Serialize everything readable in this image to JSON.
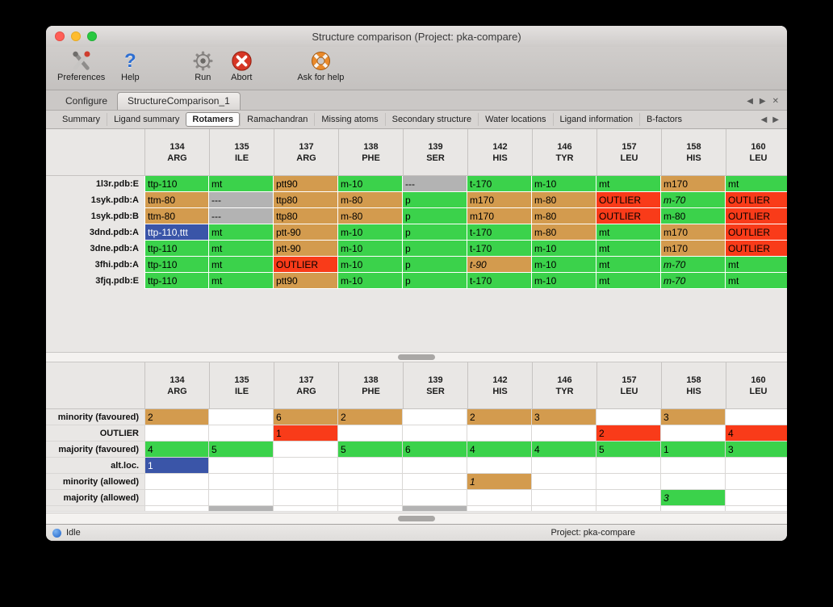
{
  "window": {
    "title": "Structure comparison (Project: pka-compare)"
  },
  "toolbar": {
    "items": [
      {
        "label": "Preferences",
        "icon": "preferences-icon"
      },
      {
        "label": "Help",
        "icon": "help-icon"
      },
      {
        "label": "Run",
        "icon": "run-icon"
      },
      {
        "label": "Abort",
        "icon": "abort-icon"
      },
      {
        "label": "Ask for help",
        "icon": "lifebuoy-icon"
      }
    ]
  },
  "tabs": {
    "items": [
      {
        "label": "Configure",
        "active": false
      },
      {
        "label": "StructureComparison_1",
        "active": true
      }
    ]
  },
  "subtabs": {
    "items": [
      {
        "label": "Summary",
        "active": false
      },
      {
        "label": "Ligand summary",
        "active": false
      },
      {
        "label": "Rotamers",
        "active": true
      },
      {
        "label": "Ramachandran",
        "active": false
      },
      {
        "label": "Missing atoms",
        "active": false
      },
      {
        "label": "Secondary structure",
        "active": false
      },
      {
        "label": "Water locations",
        "active": false
      },
      {
        "label": "Ligand information",
        "active": false
      },
      {
        "label": "B-factors",
        "active": false
      }
    ]
  },
  "controls": {
    "scroll_left": "◀",
    "scroll_right": "▶",
    "close": "✕"
  },
  "colors": {
    "green": "#3bd24b",
    "orange": "#d39b4e",
    "red": "#f93b19",
    "gray": "#b3b3b3",
    "blue": "#3a55a8",
    "selection_text": "#ffffff"
  },
  "columns": [
    {
      "num": "134",
      "res": "ARG"
    },
    {
      "num": "135",
      "res": "ILE"
    },
    {
      "num": "137",
      "res": "ARG"
    },
    {
      "num": "138",
      "res": "PHE"
    },
    {
      "num": "139",
      "res": "SER"
    },
    {
      "num": "142",
      "res": "HIS"
    },
    {
      "num": "146",
      "res": "TYR"
    },
    {
      "num": "157",
      "res": "LEU"
    },
    {
      "num": "158",
      "res": "HIS"
    },
    {
      "num": "160",
      "res": "LEU"
    }
  ],
  "top_table": {
    "rows": [
      {
        "label": "1l3r.pdb:E",
        "cells": [
          {
            "t": "ttp-110",
            "c": "green"
          },
          {
            "t": "mt",
            "c": "green"
          },
          {
            "t": "ptt90",
            "c": "orange"
          },
          {
            "t": "m-10",
            "c": "green"
          },
          {
            "t": "---",
            "c": "gray"
          },
          {
            "t": "t-170",
            "c": "green"
          },
          {
            "t": "m-10",
            "c": "green"
          },
          {
            "t": "mt",
            "c": "green"
          },
          {
            "t": "m170",
            "c": "orange"
          },
          {
            "t": "mt",
            "c": "green"
          }
        ]
      },
      {
        "label": "1syk.pdb:A",
        "cells": [
          {
            "t": "ttm-80",
            "c": "orange"
          },
          {
            "t": "---",
            "c": "gray"
          },
          {
            "t": "ttp80",
            "c": "orange"
          },
          {
            "t": "m-80",
            "c": "orange"
          },
          {
            "t": "p",
            "c": "green"
          },
          {
            "t": "m170",
            "c": "orange"
          },
          {
            "t": "m-80",
            "c": "orange"
          },
          {
            "t": "OUTLIER",
            "c": "red"
          },
          {
            "t": "m-70",
            "c": "green",
            "i": true
          },
          {
            "t": "OUTLIER",
            "c": "red"
          }
        ]
      },
      {
        "label": "1syk.pdb:B",
        "cells": [
          {
            "t": "ttm-80",
            "c": "orange"
          },
          {
            "t": "---",
            "c": "gray"
          },
          {
            "t": "ttp80",
            "c": "orange"
          },
          {
            "t": "m-80",
            "c": "orange"
          },
          {
            "t": "p",
            "c": "green"
          },
          {
            "t": "m170",
            "c": "orange"
          },
          {
            "t": "m-80",
            "c": "orange"
          },
          {
            "t": "OUTLIER",
            "c": "red"
          },
          {
            "t": "m-80",
            "c": "green"
          },
          {
            "t": "OUTLIER",
            "c": "red"
          }
        ]
      },
      {
        "label": "3dnd.pdb:A",
        "cells": [
          {
            "t": "ttp-110,ttt",
            "c": "blue"
          },
          {
            "t": "mt",
            "c": "green"
          },
          {
            "t": "ptt-90",
            "c": "orange"
          },
          {
            "t": "m-10",
            "c": "green"
          },
          {
            "t": "p",
            "c": "green"
          },
          {
            "t": "t-170",
            "c": "green"
          },
          {
            "t": "m-80",
            "c": "orange"
          },
          {
            "t": "mt",
            "c": "green"
          },
          {
            "t": "m170",
            "c": "orange"
          },
          {
            "t": "OUTLIER",
            "c": "red"
          }
        ]
      },
      {
        "label": "3dne.pdb:A",
        "cells": [
          {
            "t": "ttp-110",
            "c": "green"
          },
          {
            "t": "mt",
            "c": "green"
          },
          {
            "t": "ptt-90",
            "c": "orange"
          },
          {
            "t": "m-10",
            "c": "green"
          },
          {
            "t": "p",
            "c": "green"
          },
          {
            "t": "t-170",
            "c": "green"
          },
          {
            "t": "m-10",
            "c": "green"
          },
          {
            "t": "mt",
            "c": "green"
          },
          {
            "t": "m170",
            "c": "orange"
          },
          {
            "t": "OUTLIER",
            "c": "red"
          }
        ]
      },
      {
        "label": "3fhi.pdb:A",
        "cells": [
          {
            "t": "ttp-110",
            "c": "green"
          },
          {
            "t": "mt",
            "c": "green"
          },
          {
            "t": "OUTLIER",
            "c": "red"
          },
          {
            "t": "m-10",
            "c": "green"
          },
          {
            "t": "p",
            "c": "green"
          },
          {
            "t": "t-90",
            "c": "orange",
            "i": true
          },
          {
            "t": "m-10",
            "c": "green"
          },
          {
            "t": "mt",
            "c": "green"
          },
          {
            "t": "m-70",
            "c": "green",
            "i": true
          },
          {
            "t": "mt",
            "c": "green"
          }
        ]
      },
      {
        "label": "3fjq.pdb:E",
        "cells": [
          {
            "t": "ttp-110",
            "c": "green"
          },
          {
            "t": "mt",
            "c": "green"
          },
          {
            "t": "ptt90",
            "c": "orange"
          },
          {
            "t": "m-10",
            "c": "green"
          },
          {
            "t": "p",
            "c": "green"
          },
          {
            "t": "t-170",
            "c": "green"
          },
          {
            "t": "m-10",
            "c": "green"
          },
          {
            "t": "mt",
            "c": "green"
          },
          {
            "t": "m-70",
            "c": "green",
            "i": true
          },
          {
            "t": "mt",
            "c": "green"
          }
        ]
      }
    ]
  },
  "bottom_table": {
    "rows": [
      {
        "label": "minority (favoured)",
        "cells": [
          {
            "t": "2",
            "c": "orange"
          },
          null,
          {
            "t": "6",
            "c": "orange"
          },
          {
            "t": "2",
            "c": "orange"
          },
          null,
          {
            "t": "2",
            "c": "orange"
          },
          {
            "t": "3",
            "c": "orange"
          },
          null,
          {
            "t": "3",
            "c": "orange"
          },
          null
        ]
      },
      {
        "label": "OUTLIER",
        "cells": [
          null,
          null,
          {
            "t": "1",
            "c": "red"
          },
          null,
          null,
          null,
          null,
          {
            "t": "2",
            "c": "red"
          },
          null,
          {
            "t": "4",
            "c": "red"
          }
        ]
      },
      {
        "label": "majority (favoured)",
        "cells": [
          {
            "t": "4",
            "c": "green"
          },
          {
            "t": "5",
            "c": "green"
          },
          null,
          {
            "t": "5",
            "c": "green"
          },
          {
            "t": "6",
            "c": "green"
          },
          {
            "t": "4",
            "c": "green"
          },
          {
            "t": "4",
            "c": "green"
          },
          {
            "t": "5",
            "c": "green"
          },
          {
            "t": "1",
            "c": "green"
          },
          {
            "t": "3",
            "c": "green"
          }
        ]
      },
      {
        "label": "alt.loc.",
        "cells": [
          {
            "t": "1",
            "c": "blue"
          },
          null,
          null,
          null,
          null,
          null,
          null,
          null,
          null,
          null
        ]
      },
      {
        "label": "minority (allowed)",
        "cells": [
          null,
          null,
          null,
          null,
          null,
          {
            "t": "1",
            "c": "orange",
            "i": true
          },
          null,
          null,
          null,
          null
        ]
      },
      {
        "label": "majority (allowed)",
        "cells": [
          null,
          null,
          null,
          null,
          null,
          null,
          null,
          null,
          {
            "t": "3",
            "c": "green",
            "i": true
          },
          null
        ]
      }
    ],
    "clipped_row_gray_columns": [
      1,
      4
    ]
  },
  "statusbar": {
    "status": "Idle",
    "project": "Project: pka-compare"
  }
}
